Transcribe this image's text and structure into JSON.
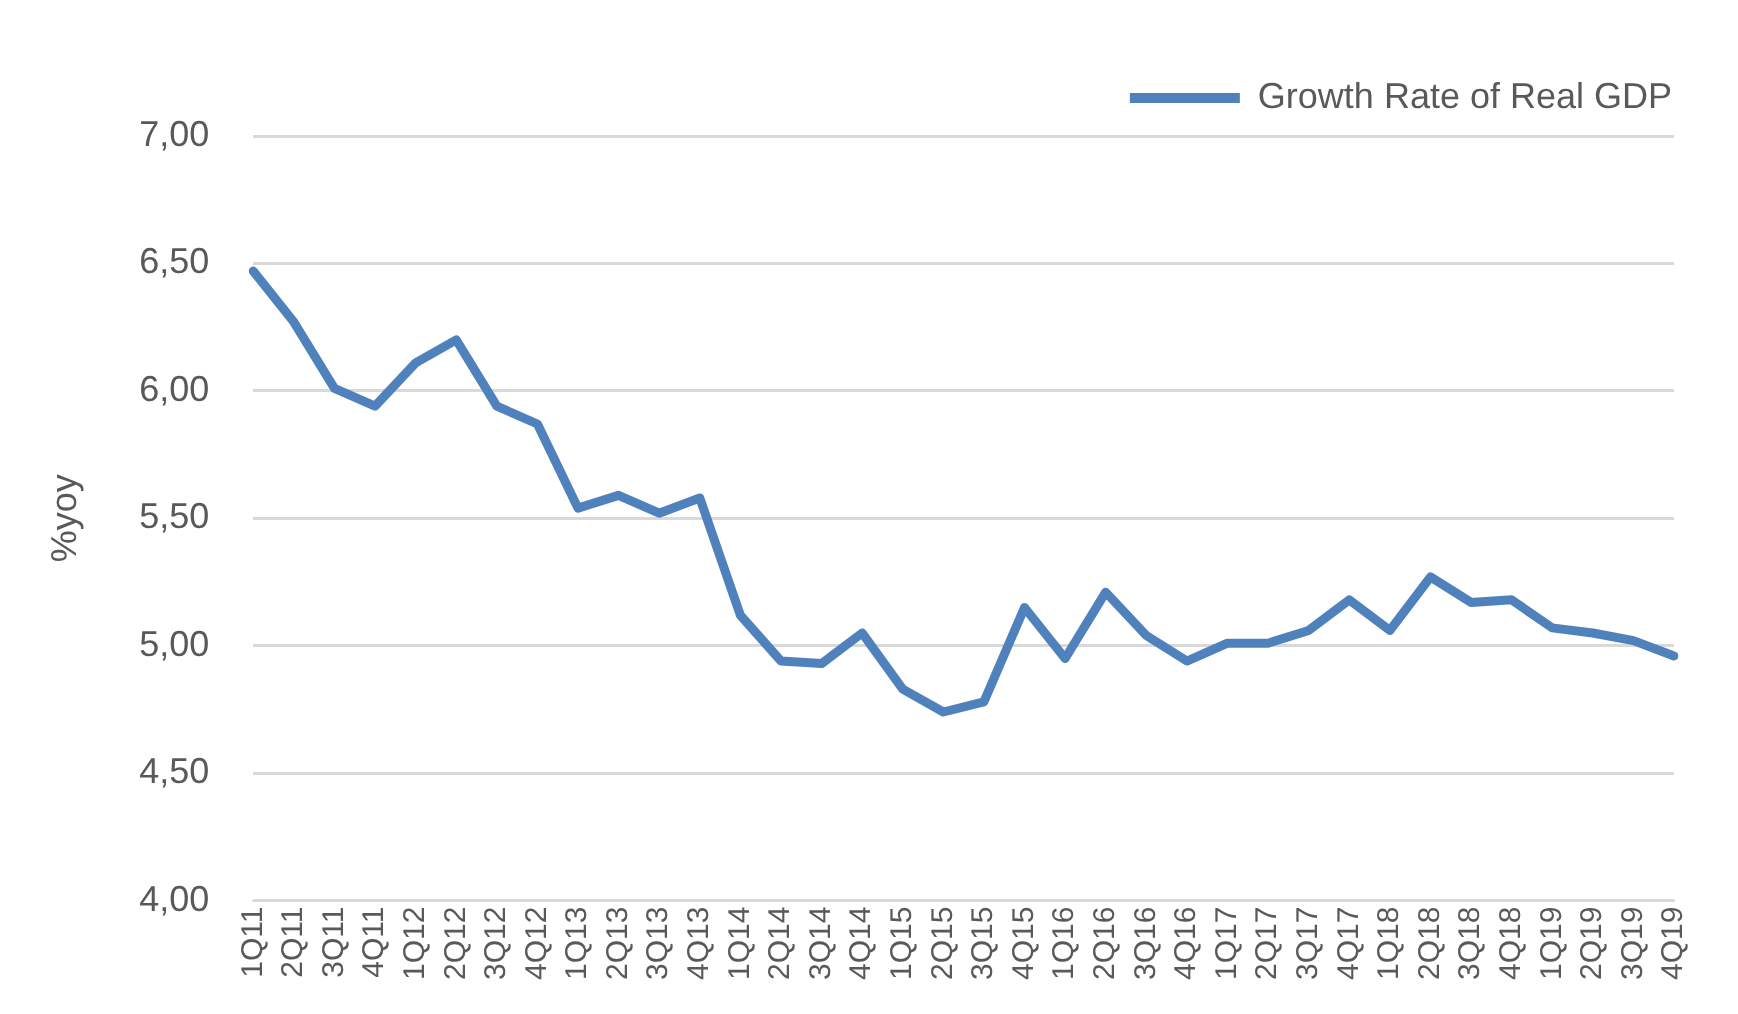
{
  "chart_data": {
    "type": "line",
    "ylabel": "%yoy",
    "categories": [
      "1Q11",
      "2Q11",
      "3Q11",
      "4Q11",
      "1Q12",
      "2Q12",
      "3Q12",
      "4Q12",
      "1Q13",
      "2Q13",
      "3Q13",
      "4Q13",
      "1Q14",
      "2Q14",
      "3Q14",
      "4Q14",
      "1Q15",
      "2Q15",
      "3Q15",
      "4Q15",
      "1Q16",
      "2Q16",
      "3Q16",
      "4Q16",
      "1Q17",
      "2Q17",
      "3Q17",
      "4Q17",
      "1Q18",
      "2Q18",
      "3Q18",
      "4Q18",
      "1Q19",
      "2Q19",
      "3Q19",
      "4Q19"
    ],
    "series": [
      {
        "name": "Growth Rate of Real GDP",
        "color": "#4f81bd",
        "values": [
          6.47,
          6.27,
          6.01,
          5.94,
          6.11,
          6.2,
          5.94,
          5.87,
          5.54,
          5.59,
          5.52,
          5.58,
          5.12,
          4.94,
          4.93,
          5.05,
          4.83,
          4.74,
          4.78,
          5.15,
          4.95,
          5.21,
          5.04,
          4.94,
          5.01,
          5.01,
          5.06,
          5.18,
          5.06,
          5.27,
          5.17,
          5.18,
          5.07,
          5.05,
          5.02,
          4.96
        ]
      }
    ],
    "ylim": [
      4,
      7
    ],
    "yticks": [
      {
        "value": 4,
        "label": "4,00"
      },
      {
        "value": 4.5,
        "label": "4,50"
      },
      {
        "value": 5,
        "label": "5,00"
      },
      {
        "value": 5.5,
        "label": "5,50"
      },
      {
        "value": 6,
        "label": "6,00"
      },
      {
        "value": 6.5,
        "label": "6,50"
      },
      {
        "value": 7,
        "label": "7,00"
      }
    ],
    "grid": "y",
    "legend": "top right",
    "marker": "none",
    "line_style": "solid"
  }
}
